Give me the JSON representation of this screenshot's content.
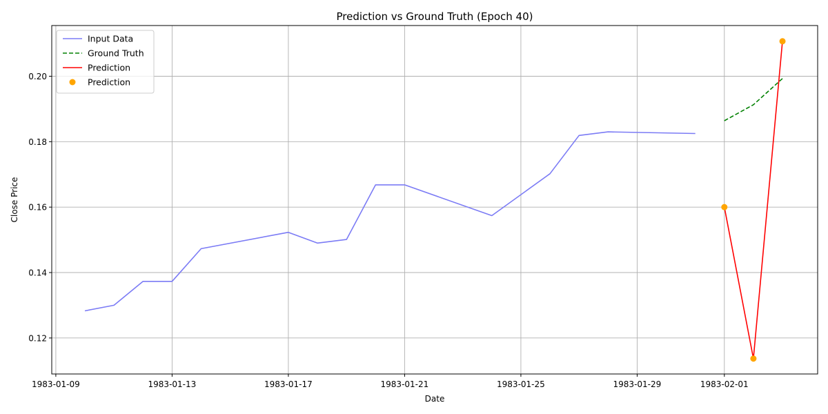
{
  "chart_data": {
    "type": "line",
    "title": "Prediction vs Ground Truth (Epoch 40)",
    "xlabel": "Date",
    "ylabel": "Close Price",
    "xlim": [
      "1983-01-08 20:38",
      "1983-02-04 05:02"
    ],
    "ylim": [
      0.109,
      0.2155
    ],
    "x_ticks": [
      "1983-01-09",
      "1983-01-13",
      "1983-01-17",
      "1983-01-21",
      "1983-01-25",
      "1983-01-29",
      "1983-02-01"
    ],
    "y_ticks": [
      "0.12",
      "0.14",
      "0.16",
      "0.18",
      "0.20"
    ],
    "grid": true,
    "legend_position": "top-left",
    "series": [
      {
        "name": "Input Data",
        "kind": "line",
        "style": "solid",
        "color": "#7b7bf5",
        "x": [
          "1983-01-10",
          "1983-01-11",
          "1983-01-12",
          "1983-01-13",
          "1983-01-14",
          "1983-01-17",
          "1983-01-18",
          "1983-01-19",
          "1983-01-20",
          "1983-01-21",
          "1983-01-24",
          "1983-01-26",
          "1983-01-27",
          "1983-01-28",
          "1983-01-31"
        ],
        "values": [
          0.1283,
          0.13,
          0.1373,
          0.1373,
          0.1473,
          0.1523,
          0.149,
          0.1501,
          0.1668,
          0.1668,
          0.1574,
          0.1702,
          0.1819,
          0.183,
          0.1825
        ]
      },
      {
        "name": "Ground Truth",
        "kind": "line",
        "style": "dashed",
        "color": "#008000",
        "x": [
          "1983-02-01",
          "1983-02-02",
          "1983-02-03"
        ],
        "values": [
          0.1864,
          0.1913,
          0.1993
        ]
      },
      {
        "name": "Prediction",
        "kind": "line",
        "style": "solid",
        "color": "#ff0000",
        "x": [
          "1983-02-01",
          "1983-02-02",
          "1983-02-03"
        ],
        "values": [
          0.16,
          0.1137,
          0.2107
        ]
      },
      {
        "name": "Prediction",
        "kind": "scatter",
        "color": "#ffa500",
        "x": [
          "1983-02-01",
          "1983-02-02",
          "1983-02-03"
        ],
        "values": [
          0.16,
          0.1137,
          0.2107
        ]
      }
    ]
  }
}
